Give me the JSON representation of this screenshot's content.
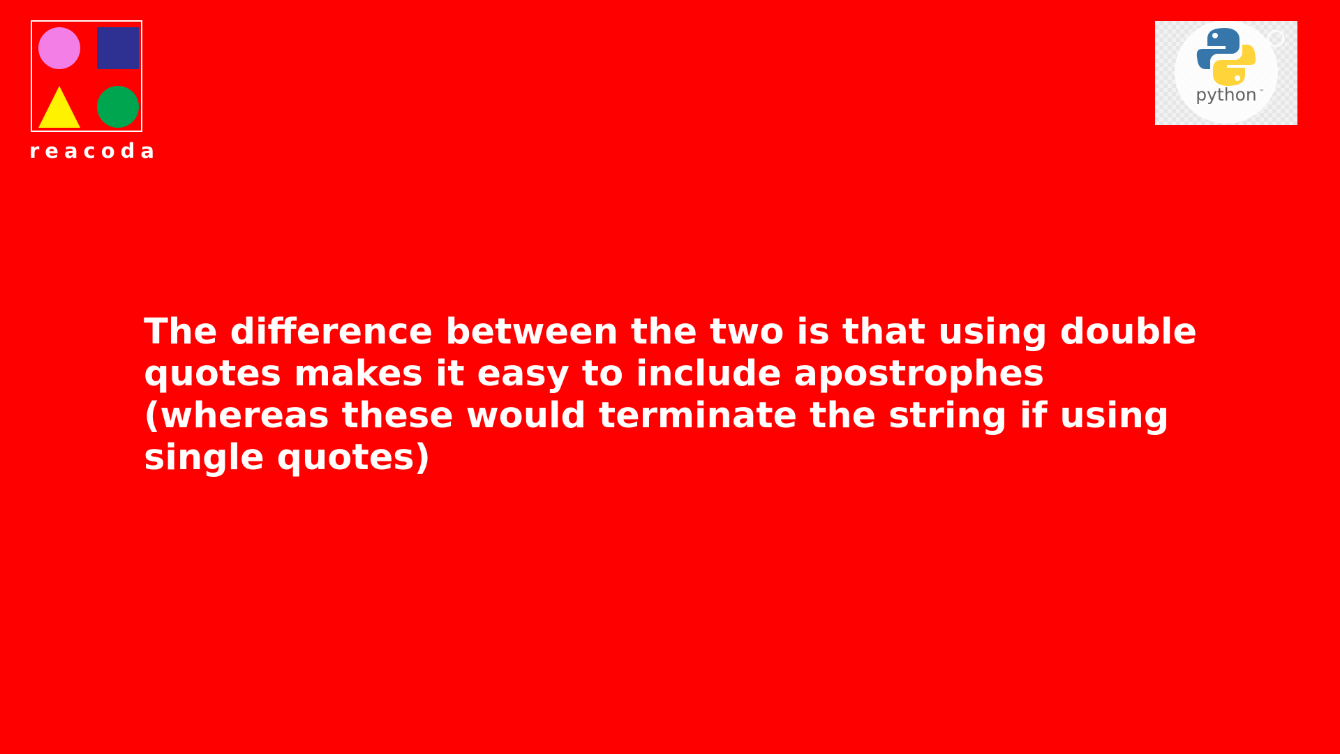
{
  "brand": {
    "name": "reacoda",
    "logo_colors": {
      "circle": "#f27ee6",
      "square": "#2e3192",
      "triangle": "#fff200",
      "dot": "#00a550"
    }
  },
  "python_logo": {
    "wordmark": "python",
    "trademark": "™",
    "colors": {
      "blue": "#3776ab",
      "yellow": "#ffd43b"
    }
  },
  "slide": {
    "text": "The difference between the two is that using double quotes makes it easy to include apostrophes (whereas these would terminate the string if using single quotes)"
  },
  "theme": {
    "background": "#ff0000",
    "text_color": "#ffffff"
  }
}
